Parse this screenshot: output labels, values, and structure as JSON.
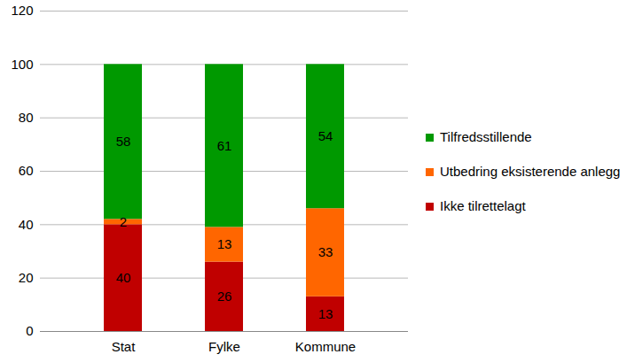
{
  "chart_data": {
    "type": "bar",
    "stacked": true,
    "data_labels": true,
    "grid": true,
    "legend": "right",
    "categories": [
      "Stat",
      "Fylke",
      "Kommune"
    ],
    "series": [
      {
        "name": "Ikke tilrettelagt",
        "color": "#c00000",
        "values": [
          40,
          26,
          13
        ]
      },
      {
        "name": "Utbedring eksisterende anlegg",
        "color": "#ff6600",
        "values": [
          2,
          13,
          33
        ]
      },
      {
        "name": "Tilfredsstillende",
        "color": "#009900",
        "values": [
          58,
          61,
          54
        ]
      }
    ],
    "ylim": [
      0,
      120
    ],
    "yticks": [
      0,
      20,
      40,
      60,
      80,
      100,
      120
    ]
  }
}
